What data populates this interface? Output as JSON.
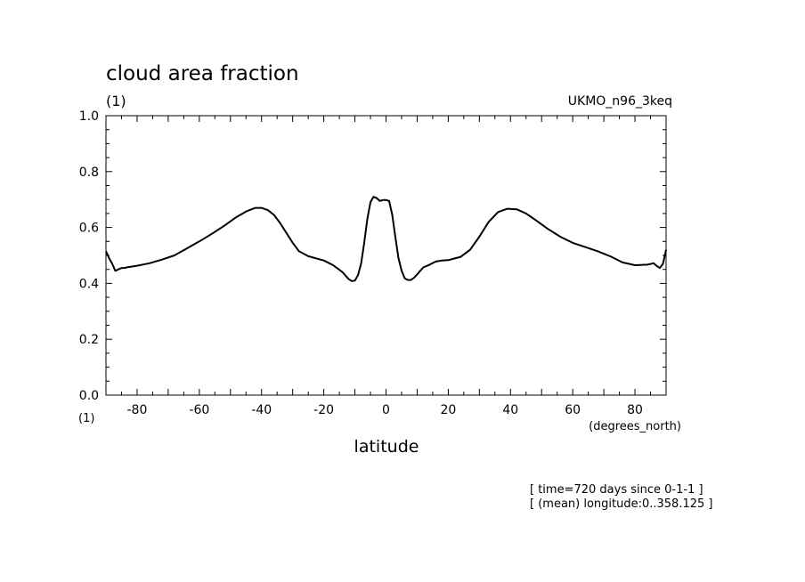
{
  "chart_data": {
    "type": "line",
    "title": "cloud area fraction",
    "y_unit": "(1)",
    "x_unit_left": "(1)",
    "dataset_label": "UKMO_n96_3keq",
    "xlabel": "latitude",
    "x_units": "(degrees_north)",
    "xlim": [
      -90,
      90
    ],
    "ylim": [
      0.0,
      1.0
    ],
    "x_ticks": [
      -80,
      -60,
      -40,
      -20,
      0,
      20,
      40,
      60,
      80
    ],
    "x_tick_labels": [
      "-80",
      "-60",
      "-40",
      "-20",
      "0",
      "20",
      "40",
      "60",
      "80"
    ],
    "y_ticks": [
      0.0,
      0.2,
      0.4,
      0.6,
      0.8,
      1.0
    ],
    "y_tick_labels": [
      "0.0",
      "0.2",
      "0.4",
      "0.6",
      "0.8",
      "1.0"
    ],
    "grid": false,
    "series": [
      {
        "x": [
          -90,
          -89,
          -88,
          -87,
          -86,
          -85,
          -84,
          -83,
          -80,
          -76,
          -72,
          -68,
          -64,
          -60,
          -56,
          -52,
          -48,
          -45,
          -42,
          -40,
          -38,
          -36,
          -34,
          -32,
          -30,
          -28,
          -25,
          -20,
          -17,
          -14,
          -12,
          -11,
          -10,
          -9,
          -8,
          -7,
          -6,
          -5,
          -4,
          -3,
          -2,
          -1,
          0,
          1,
          2,
          3,
          4,
          5,
          6,
          7,
          8,
          9,
          10,
          11,
          12,
          14,
          16,
          18,
          20,
          24,
          27,
          30,
          33,
          36,
          39,
          42,
          45,
          48,
          52,
          56,
          60,
          64,
          68,
          72,
          76,
          80,
          84,
          86,
          87,
          88,
          89,
          90
        ],
        "y": [
          0.515,
          0.49,
          0.47,
          0.445,
          0.45,
          0.455,
          0.455,
          0.458,
          0.463,
          0.472,
          0.485,
          0.5,
          0.525,
          0.55,
          0.577,
          0.606,
          0.638,
          0.657,
          0.67,
          0.67,
          0.662,
          0.645,
          0.615,
          0.58,
          0.545,
          0.515,
          0.497,
          0.482,
          0.465,
          0.44,
          0.415,
          0.408,
          0.41,
          0.43,
          0.47,
          0.545,
          0.63,
          0.69,
          0.71,
          0.705,
          0.695,
          0.698,
          0.698,
          0.695,
          0.645,
          0.565,
          0.49,
          0.445,
          0.418,
          0.412,
          0.412,
          0.42,
          0.432,
          0.445,
          0.457,
          0.467,
          0.478,
          0.482,
          0.483,
          0.495,
          0.52,
          0.567,
          0.62,
          0.655,
          0.667,
          0.665,
          0.65,
          0.627,
          0.595,
          0.567,
          0.545,
          0.53,
          0.515,
          0.497,
          0.475,
          0.465,
          0.467,
          0.472,
          0.462,
          0.455,
          0.47,
          0.52
        ]
      }
    ],
    "annotations": [
      "[ time=720 days since 0-1-1 ]",
      "[ (mean) longitude:0..358.125 ]"
    ]
  }
}
